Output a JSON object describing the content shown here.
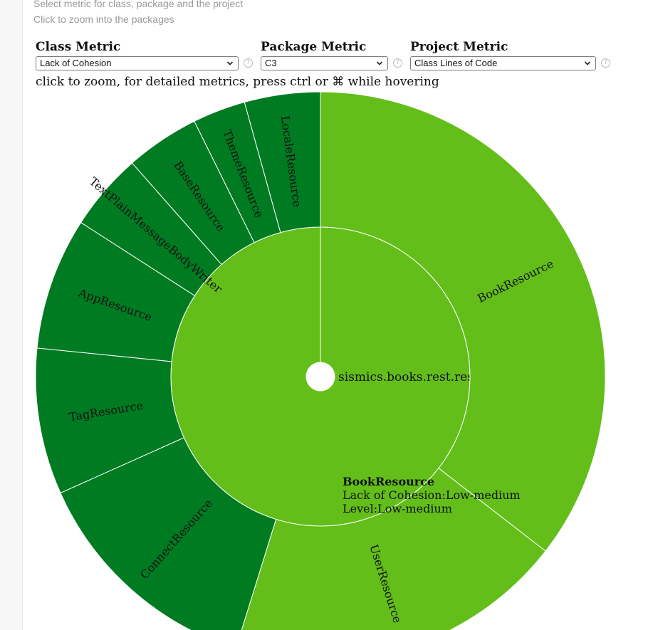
{
  "hints": {
    "select_metric": "Select metric for class, package and the project",
    "click_zoom": "Click to zoom into the packages"
  },
  "controls": {
    "class_metric": {
      "title": "Class Metric",
      "selected": "Lack of Cohesion",
      "help": "?"
    },
    "package_metric": {
      "title": "Package Metric",
      "selected": "C3",
      "help": "?"
    },
    "project_metric": {
      "title": "Project Metric",
      "selected": "Class Lines of Code",
      "help": "?"
    }
  },
  "chart": {
    "instruction": "click to zoom, for detailed metrics, press ctrl or ⌘ while hovering",
    "colors": {
      "low_medium": "#63be1a",
      "low": "#007b22",
      "stroke": "#ffffff"
    },
    "package": {
      "label": "sismics.books.rest.resource"
    },
    "classes": [
      {
        "name": "BookResource",
        "share": 0.355,
        "level": "low_medium"
      },
      {
        "name": "UserResource",
        "share": 0.193,
        "level": "low_medium"
      },
      {
        "name": "ConnectResource",
        "share": 0.135,
        "level": "low"
      },
      {
        "name": "TagResource",
        "share": 0.083,
        "level": "low"
      },
      {
        "name": "AppResource",
        "share": 0.075,
        "level": "low"
      },
      {
        "name": "TextPlainMessageBodyWriter",
        "share": 0.044,
        "level": "low"
      },
      {
        "name": "BaseResource",
        "share": 0.042,
        "level": "low"
      },
      {
        "name": "ThemeResource",
        "share": 0.03,
        "level": "low"
      },
      {
        "name": "LocaleResource",
        "share": 0.043,
        "level": "low"
      }
    ]
  },
  "tooltip": {
    "name": "BookResource",
    "metric_line": "Lack of Cohesion:Low-medium",
    "level_line": "Level:Low-medium"
  }
}
